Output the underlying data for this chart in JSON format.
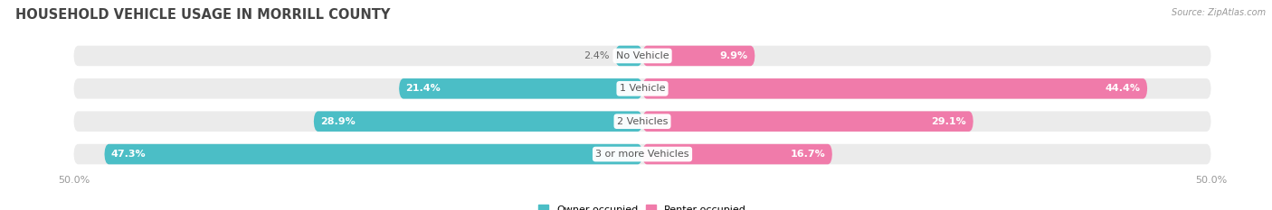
{
  "title": "HOUSEHOLD VEHICLE USAGE IN MORRILL COUNTY",
  "source": "Source: ZipAtlas.com",
  "categories": [
    "No Vehicle",
    "1 Vehicle",
    "2 Vehicles",
    "3 or more Vehicles"
  ],
  "owner_values": [
    2.4,
    21.4,
    28.9,
    47.3
  ],
  "renter_values": [
    9.9,
    44.4,
    29.1,
    16.7
  ],
  "owner_color": "#4BBEC6",
  "renter_color": "#F07BAA",
  "bar_bg_color": "#EBEBEB",
  "tick_label": "50.0%",
  "bar_height": 0.62,
  "background_color": "#FFFFFF",
  "title_fontsize": 10.5,
  "legend_owner": "Owner-occupied",
  "legend_renter": "Renter-occupied",
  "value_fontsize": 8,
  "category_fontsize": 8,
  "axis_fontsize": 8,
  "inside_label_threshold": 8
}
